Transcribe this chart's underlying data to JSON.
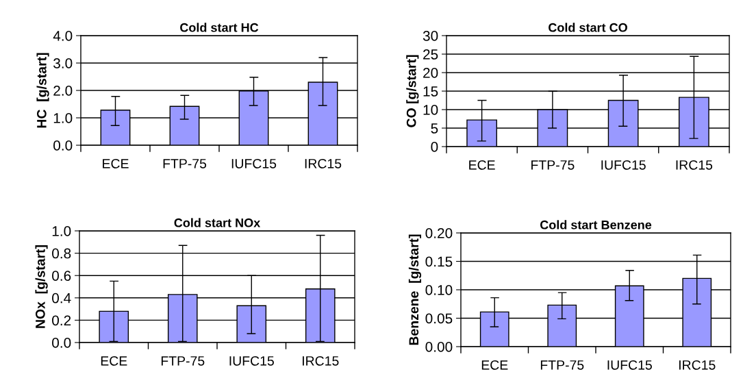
{
  "chart_data": [
    {
      "type": "bar",
      "title": "Cold start HC",
      "ylabel": "HC  [g/start]",
      "categories": [
        "ECE",
        "FTP-75",
        "IUFC15",
        "IRC15"
      ],
      "color": "#9999ff",
      "values": [
        1.28,
        1.42,
        1.98,
        2.3
      ],
      "errors": [
        [
          0.72,
          1.78
        ],
        [
          0.95,
          1.82
        ],
        [
          1.45,
          2.48
        ],
        [
          1.45,
          3.2
        ]
      ],
      "ylim": [
        0,
        4
      ],
      "yticks": [
        {
          "value": 0,
          "label": "0.0"
        },
        {
          "value": 1,
          "label": "1.0"
        },
        {
          "value": 2,
          "label": "2.0"
        },
        {
          "value": 3,
          "label": "3.0"
        },
        {
          "value": 4,
          "label": "4.0"
        }
      ],
      "grid": "y",
      "legend": false
    },
    {
      "type": "bar",
      "title": "Cold start CO",
      "ylabel": "CO [g/start]",
      "categories": [
        "ECE",
        "FTP-75",
        "IUFC15",
        "IRC15"
      ],
      "color": "#9999ff",
      "values": [
        7.2,
        10,
        12.5,
        13.3
      ],
      "errors": [
        [
          1.5,
          12.5
        ],
        [
          5,
          15
        ],
        [
          5.5,
          19.3
        ],
        [
          2.2,
          24.4
        ]
      ],
      "ylim": [
        0,
        30
      ],
      "yticks": [
        0,
        5,
        10,
        15,
        20,
        25,
        30
      ],
      "grid": "y",
      "legend": false
    },
    {
      "type": "bar",
      "title": "Cold start NOx",
      "ylabel": "NOx  [g/start]",
      "categories": [
        "ECE",
        "FTP-75",
        "IUFC15",
        "IRC15"
      ],
      "color": "#9999ff",
      "values": [
        0.28,
        0.43,
        0.33,
        0.48
      ],
      "errors": [
        [
          0.01,
          0.55
        ],
        [
          0.01,
          0.87
        ],
        [
          0.08,
          0.6
        ],
        [
          0.01,
          0.96
        ]
      ],
      "ylim": [
        0,
        1
      ],
      "yticks": [
        {
          "value": 0,
          "label": "0.0"
        },
        {
          "value": 0.2,
          "label": "0.2"
        },
        {
          "value": 0.4,
          "label": "0.4"
        },
        {
          "value": 0.6,
          "label": "0.6"
        },
        {
          "value": 0.8,
          "label": "0.8"
        },
        {
          "value": 1,
          "label": "1.0"
        }
      ],
      "grid": "y",
      "legend": false
    },
    {
      "type": "bar",
      "title": "Cold start Benzene",
      "ylabel": "Benzene  [g/start]",
      "categories": [
        "ECE",
        "FTP-75",
        "IUFC15",
        "IRC15"
      ],
      "color": "#9999ff",
      "values": [
        0.061,
        0.073,
        0.107,
        0.12
      ],
      "errors": [
        [
          0.035,
          0.086
        ],
        [
          0.049,
          0.095
        ],
        [
          0.081,
          0.134
        ],
        [
          0.075,
          0.161
        ]
      ],
      "ylim": [
        0,
        0.2
      ],
      "yticks": [
        {
          "value": 0,
          "label": "0.00"
        },
        {
          "value": 0.05,
          "label": "0.05"
        },
        {
          "value": 0.1,
          "label": "0.10"
        },
        {
          "value": 0.15,
          "label": "0.15"
        },
        {
          "value": 0.2,
          "label": "0.20"
        }
      ],
      "grid": "y",
      "legend": false
    }
  ]
}
